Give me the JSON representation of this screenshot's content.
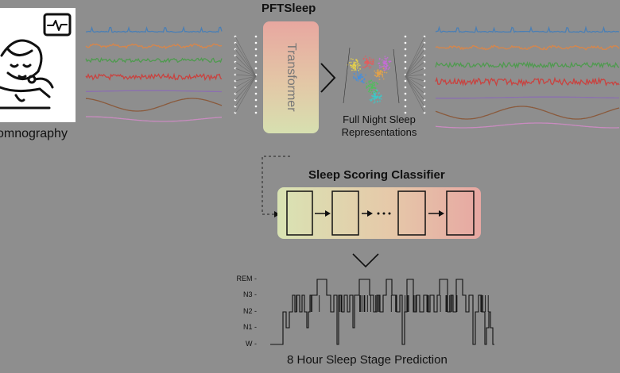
{
  "title": "PFTSleep",
  "transformer_label": "Transformer",
  "left_label": "omnography",
  "representations_label": "Full Night Sleep\nRepresentations",
  "classifier_title": "Sleep Scoring Classifier",
  "prediction_label": "8 Hour Sleep Stage Prediction",
  "stage_ticks": [
    "REM",
    "N3",
    "N2",
    "N1",
    "W"
  ],
  "signal_colors": [
    "#4a7fb5",
    "#d8864a",
    "#4f9a4f",
    "#c9423f",
    "#8b6fb0",
    "#8a5a3c",
    "#c98bc0"
  ],
  "icon_names": [
    "patient-monitor-icon"
  ]
}
